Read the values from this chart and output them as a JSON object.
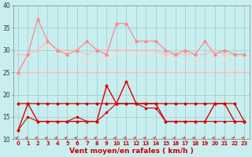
{
  "x": [
    0,
    1,
    2,
    3,
    4,
    5,
    6,
    7,
    8,
    9,
    10,
    11,
    12,
    13,
    14,
    15,
    16,
    17,
    18,
    19,
    20,
    21,
    22,
    23
  ],
  "line_flat25": [
    25,
    25,
    25,
    25,
    25,
    25,
    25,
    25,
    25,
    25,
    25,
    25,
    25,
    25,
    25,
    25,
    25,
    25,
    25,
    25,
    25,
    25,
    25,
    25
  ],
  "line_smooth30": [
    29,
    29,
    30,
    32,
    30,
    30,
    30,
    29,
    30,
    30,
    30,
    30,
    30,
    30,
    30,
    29,
    29,
    29,
    29,
    29,
    30,
    29,
    29,
    29
  ],
  "line_spiky": [
    25,
    29,
    37,
    32,
    30,
    29,
    30,
    32,
    30,
    29,
    36,
    36,
    32,
    32,
    32,
    30,
    29,
    30,
    29,
    32,
    29,
    30,
    29,
    29
  ],
  "line_descending": [
    25,
    28,
    30,
    31,
    30,
    29,
    28,
    27,
    27,
    28,
    29,
    30,
    29,
    29,
    29,
    28,
    28,
    27,
    27,
    27,
    28,
    28,
    26,
    25
  ],
  "line_red_flat": [
    18,
    18,
    18,
    18,
    18,
    18,
    18,
    18,
    18,
    18,
    18,
    18,
    18,
    18,
    18,
    18,
    18,
    18,
    18,
    18,
    18,
    18,
    18,
    14
  ],
  "line_red_spiky": [
    12,
    18,
    14,
    14,
    14,
    14,
    14,
    14,
    14,
    22,
    18,
    23,
    18,
    18,
    18,
    14,
    14,
    14,
    14,
    14,
    18,
    18,
    14,
    14
  ],
  "line_red_low": [
    12,
    15,
    14,
    14,
    14,
    14,
    15,
    14,
    14,
    16,
    18,
    18,
    18,
    17,
    17,
    14,
    14,
    14,
    14,
    14,
    14,
    14,
    14,
    14
  ],
  "bg_color": "#c8eef0",
  "grid_color": "#99cccc",
  "color_flat25": "#ffbbbb",
  "color_smooth30": "#ffbbbb",
  "color_spiky": "#ff8888",
  "color_desc": "#ffdddd",
  "color_red_flat": "#cc0000",
  "color_red_spiky": "#dd0000",
  "color_red_low": "#cc0000",
  "arrow_color": "#cc2222",
  "xlabel": "Vent moyen/en rafales ( km/h )",
  "ylim_min": 10,
  "ylim_max": 40,
  "yticks": [
    10,
    15,
    20,
    25,
    30,
    35,
    40
  ]
}
